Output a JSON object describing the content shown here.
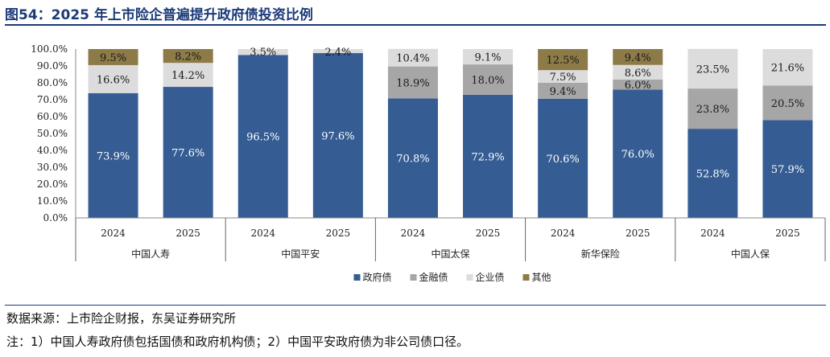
{
  "title": "图54：2025 年上市险企普遍提升政府债投资比例",
  "source": "数据来源：上市险企财报，东吴证券研究所",
  "note": "注：1）中国人寿政府债包括国债和政府机构债；2）中国平安政府债为非公司债口径。",
  "colors": {
    "政府债": "#355d94",
    "金融债": "#a6a6a6",
    "企业债": "#dcdcdc",
    "其他": "#8c7a47"
  },
  "chart_data": {
    "type": "bar",
    "stacked": true,
    "ylim": [
      0,
      100
    ],
    "y_ticks": [
      "0.0%",
      "10.0%",
      "20.0%",
      "30.0%",
      "40.0%",
      "50.0%",
      "60.0%",
      "70.0%",
      "80.0%",
      "90.0%",
      "100.0%"
    ],
    "groups": [
      {
        "name": "中国人寿",
        "years": [
          "2024",
          "2025"
        ]
      },
      {
        "name": "中国平安",
        "years": [
          "2024",
          "2025"
        ]
      },
      {
        "name": "中国太保",
        "years": [
          "2024",
          "2025"
        ]
      },
      {
        "name": "新华保险",
        "years": [
          "2024",
          "2025"
        ]
      },
      {
        "name": "中国人保",
        "years": [
          "2024",
          "2025"
        ]
      }
    ],
    "series": [
      {
        "name": "政府债",
        "values": [
          73.9,
          77.6,
          96.5,
          97.6,
          70.8,
          72.9,
          70.6,
          76.0,
          52.8,
          57.9
        ],
        "labels": [
          "73.9%",
          "77.6%",
          "96.5%",
          "97.6%",
          "70.8%",
          "72.9%",
          "70.6%",
          "76.0%",
          "52.8%",
          "57.9%"
        ]
      },
      {
        "name": "金融债",
        "values": [
          0,
          0,
          0,
          0,
          18.9,
          18.0,
          9.4,
          6.0,
          23.8,
          20.5
        ],
        "labels": [
          "",
          "",
          "",
          "",
          "18.9%",
          "18.0%",
          "9.4%",
          "6.0%",
          "23.8%",
          "20.5%"
        ]
      },
      {
        "name": "企业债",
        "values": [
          16.6,
          14.2,
          3.5,
          2.4,
          10.4,
          9.1,
          7.5,
          8.6,
          23.5,
          21.6
        ],
        "labels": [
          "16.6%",
          "14.2%",
          "3.5%",
          "2.4%",
          "10.4%",
          "9.1%",
          "7.5%",
          "8.6%",
          "23.5%",
          "21.6%"
        ]
      },
      {
        "name": "其他",
        "values": [
          9.5,
          8.2,
          0,
          0,
          0,
          0,
          12.5,
          9.4,
          0,
          0
        ],
        "labels": [
          "9.5%",
          "8.2%",
          "",
          "",
          "",
          "",
          "12.5%",
          "9.4%",
          "",
          ""
        ]
      }
    ],
    "legend": [
      "政府债",
      "金融债",
      "企业债",
      "其他"
    ],
    "legend_position": "bottom"
  }
}
